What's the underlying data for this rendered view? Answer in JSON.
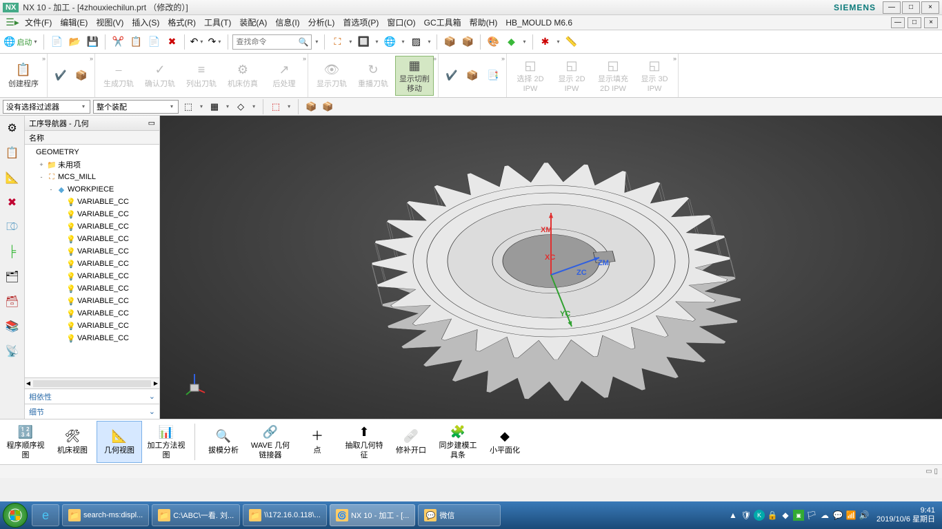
{
  "title": {
    "app": "NX",
    "version": "NX 10 - 加工 - [4zhouxiechilun.prt （修改的）]",
    "brand": "SIEMENS"
  },
  "menus": [
    "文件(F)",
    "编辑(E)",
    "视图(V)",
    "插入(S)",
    "格式(R)",
    "工具(T)",
    "装配(A)",
    "信息(I)",
    "分析(L)",
    "首选项(P)",
    "窗口(O)",
    "GC工具箱",
    "帮助(H)",
    "HB_MOULD M6.6"
  ],
  "toolbar1": {
    "start": "启动",
    "search_placeholder": "查找命令"
  },
  "ribbon_groups": [
    {
      "buttons": [
        {
          "label": "创建程序",
          "enabled": true,
          "icon": "📋"
        }
      ]
    },
    {
      "buttons": [
        {
          "label": "",
          "enabled": true,
          "icon": "✔️"
        },
        {
          "label": "",
          "enabled": true,
          "icon": "📦"
        }
      ],
      "small": true
    },
    {
      "buttons": [
        {
          "label": "生成刀轨",
          "enabled": false,
          "icon": "⎯"
        },
        {
          "label": "确认刀轨",
          "enabled": false,
          "icon": "✓"
        },
        {
          "label": "列出刀轨",
          "enabled": false,
          "icon": "≡"
        },
        {
          "label": "机床仿真",
          "enabled": false,
          "icon": "⚙"
        },
        {
          "label": "后处理",
          "enabled": false,
          "icon": "↗"
        }
      ]
    },
    {
      "buttons": [
        {
          "label": "显示刀轨",
          "enabled": false,
          "icon": "👁"
        },
        {
          "label": "重播刀轨",
          "enabled": false,
          "icon": "↻"
        },
        {
          "label": "显示切削移动",
          "enabled": true,
          "active": true,
          "icon": "▦"
        }
      ]
    },
    {
      "buttons": [
        {
          "label": "",
          "enabled": true,
          "icon": "✔️"
        },
        {
          "label": "",
          "enabled": true,
          "icon": "📦"
        },
        {
          "label": "",
          "enabled": true,
          "icon": "📑"
        }
      ],
      "small": true
    },
    {
      "buttons": [
        {
          "label": "选择 2D IPW",
          "enabled": false,
          "icon": "◱"
        },
        {
          "label": "显示 2D IPW",
          "enabled": false,
          "icon": "◱"
        },
        {
          "label": "显示填充 2D IPW",
          "enabled": false,
          "icon": "◱"
        },
        {
          "label": "显示 3D IPW",
          "enabled": false,
          "icon": "◱"
        }
      ]
    }
  ],
  "filter_bar": {
    "sel1": "没有选择过滤器",
    "sel2": "整个装配"
  },
  "navigator": {
    "title": "工序导航器 - 几何",
    "col": "名称",
    "tree": [
      {
        "indent": 0,
        "label": "GEOMETRY",
        "toggle": "",
        "icon": ""
      },
      {
        "indent": 1,
        "label": "未用项",
        "toggle": "+",
        "icon": "📁",
        "iconColor": "#d9a95a"
      },
      {
        "indent": 1,
        "label": "MCS_MILL",
        "toggle": "-",
        "icon": "⛶",
        "iconColor": "#d98a2a"
      },
      {
        "indent": 2,
        "label": "WORKPIECE",
        "toggle": "-",
        "icon": "◆",
        "iconColor": "#5aa9d9"
      },
      {
        "indent": 3,
        "label": "VARIABLE_CC",
        "toggle": "",
        "icon": "💡",
        "iconColor": "#e8c030"
      },
      {
        "indent": 3,
        "label": "VARIABLE_CC",
        "toggle": "",
        "icon": "💡",
        "iconColor": "#e8c030"
      },
      {
        "indent": 3,
        "label": "VARIABLE_CC",
        "toggle": "",
        "icon": "💡",
        "iconColor": "#e8c030"
      },
      {
        "indent": 3,
        "label": "VARIABLE_CC",
        "toggle": "",
        "icon": "💡",
        "iconColor": "#e8c030"
      },
      {
        "indent": 3,
        "label": "VARIABLE_CC",
        "toggle": "",
        "icon": "💡",
        "iconColor": "#e8c030"
      },
      {
        "indent": 3,
        "label": "VARIABLE_CC",
        "toggle": "",
        "icon": "💡",
        "iconColor": "#e8c030"
      },
      {
        "indent": 3,
        "label": "VARIABLE_CC",
        "toggle": "",
        "icon": "💡",
        "iconColor": "#e8c030"
      },
      {
        "indent": 3,
        "label": "VARIABLE_CC",
        "toggle": "",
        "icon": "💡",
        "iconColor": "#e8c030"
      },
      {
        "indent": 3,
        "label": "VARIABLE_CC",
        "toggle": "",
        "icon": "💡",
        "iconColor": "#e8c030"
      },
      {
        "indent": 3,
        "label": "VARIABLE_CC",
        "toggle": "",
        "icon": "💡",
        "iconColor": "#e8c030"
      },
      {
        "indent": 3,
        "label": "VARIABLE_CC",
        "toggle": "",
        "icon": "💡",
        "iconColor": "#e8c030"
      },
      {
        "indent": 3,
        "label": "VARIABLE_CC",
        "toggle": "",
        "icon": "💡",
        "iconColor": "#e8c030"
      }
    ],
    "sections": [
      "相依性",
      "细节"
    ]
  },
  "viewport": {
    "axes": {
      "XM": {
        "color": "#e03030"
      },
      "XC": {
        "color": "#e03030"
      },
      "YC": {
        "color": "#30a030"
      },
      "ZM": {
        "color": "#3060e0"
      },
      "ZC": {
        "color": "#3060e0"
      }
    },
    "gear": {
      "teeth": 28,
      "outerR": 260,
      "innerR": 210,
      "hubR": 150,
      "boreR": 70,
      "fill": "#e8e8e8",
      "stroke": "#333"
    }
  },
  "bottom_ribbon": [
    {
      "label": "程序顺序视图",
      "icon": "🔢"
    },
    {
      "label": "机床视图",
      "icon": "🛠"
    },
    {
      "label": "几何视图",
      "icon": "📐",
      "active": true
    },
    {
      "label": "加工方法视图",
      "icon": "📊"
    },
    {
      "sep": true
    },
    {
      "label": "拔模分析",
      "icon": "🔍"
    },
    {
      "label": "WAVE 几何链接器",
      "icon": "🔗"
    },
    {
      "label": "点",
      "icon": "＋"
    },
    {
      "label": "抽取几何特征",
      "icon": "⬆"
    },
    {
      "label": "修补开口",
      "icon": "🩹"
    },
    {
      "label": "同步建模工具条",
      "icon": "🧩"
    },
    {
      "label": "小平面化",
      "icon": "◆"
    }
  ],
  "taskbar": {
    "items": [
      {
        "label": "search-ms:displ...",
        "icon": "📁"
      },
      {
        "label": "C:\\ABC\\一看. 刘...",
        "icon": "📁"
      },
      {
        "label": "\\\\172.16.0.118\\...",
        "icon": "📁"
      },
      {
        "label": "NX 10 - 加工 - [...",
        "icon": "🌀",
        "active": true
      },
      {
        "label": "微信",
        "icon": "💬"
      }
    ],
    "time": "9:41",
    "date": "2019/10/6 星期日"
  }
}
